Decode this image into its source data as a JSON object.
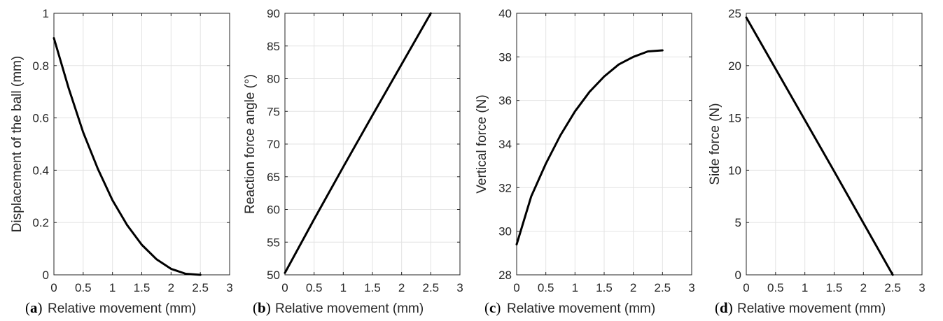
{
  "chart_data": [
    {
      "type": "line",
      "panel_label": "a",
      "xlabel": "Relative movement (mm)",
      "ylabel": "Displacement of the ball (mm)",
      "xlim": [
        0,
        3
      ],
      "ylim": [
        0,
        1
      ],
      "xticks": [
        0,
        0.5,
        1,
        1.5,
        2,
        2.5,
        3
      ],
      "yticks": [
        0,
        0.2,
        0.4,
        0.6,
        0.8,
        1
      ],
      "ytick_labels": [
        "0",
        "0.2",
        "0.4",
        "0.6",
        "0.8",
        "1"
      ],
      "grid": true,
      "color": "#000000",
      "series": [
        {
          "x": [
            0,
            0.25,
            0.5,
            0.75,
            1.0,
            1.25,
            1.5,
            1.75,
            2.0,
            2.25,
            2.5
          ],
          "y": [
            0.905,
            0.715,
            0.545,
            0.405,
            0.285,
            0.19,
            0.115,
            0.06,
            0.023,
            0.004,
            0.0
          ]
        }
      ]
    },
    {
      "type": "line",
      "panel_label": "b",
      "xlabel": "Relative movement (mm)",
      "ylabel": "Reaction force angle (°)",
      "xlim": [
        0,
        3
      ],
      "ylim": [
        50,
        90
      ],
      "xticks": [
        0,
        0.5,
        1,
        1.5,
        2,
        2.5,
        3
      ],
      "yticks": [
        50,
        55,
        60,
        65,
        70,
        75,
        80,
        85,
        90
      ],
      "grid": true,
      "color": "#000000",
      "series": [
        {
          "x": [
            0,
            0.5,
            1.0,
            1.5,
            2.0,
            2.5
          ],
          "y": [
            50.3,
            58.5,
            66.5,
            74.4,
            82.2,
            90.0
          ]
        }
      ]
    },
    {
      "type": "line",
      "panel_label": "c",
      "xlabel": "Relative movement (mm)",
      "ylabel": "Vertical force (N)",
      "xlim": [
        0,
        3
      ],
      "ylim": [
        28,
        40
      ],
      "xticks": [
        0,
        0.5,
        1,
        1.5,
        2,
        2.5,
        3
      ],
      "yticks": [
        28,
        30,
        32,
        34,
        36,
        38,
        40
      ],
      "grid": true,
      "color": "#000000",
      "series": [
        {
          "x": [
            0,
            0.25,
            0.5,
            0.75,
            1.0,
            1.25,
            1.5,
            1.75,
            2.0,
            2.25,
            2.5
          ],
          "y": [
            29.4,
            31.6,
            33.1,
            34.4,
            35.5,
            36.4,
            37.1,
            37.65,
            38.0,
            38.25,
            38.3
          ]
        }
      ]
    },
    {
      "type": "line",
      "panel_label": "d",
      "xlabel": "Relative movement (mm)",
      "ylabel": "Side force (N)",
      "xlim": [
        0,
        3
      ],
      "ylim": [
        0,
        25
      ],
      "xticks": [
        0,
        0.5,
        1,
        1.5,
        2,
        2.5,
        3
      ],
      "yticks": [
        0,
        5,
        10,
        15,
        20,
        25
      ],
      "grid": true,
      "color": "#000000",
      "series": [
        {
          "x": [
            0,
            0.5,
            1.0,
            1.5,
            2.0,
            2.5
          ],
          "y": [
            24.6,
            19.7,
            14.8,
            9.9,
            4.95,
            0.0
          ]
        }
      ]
    }
  ]
}
